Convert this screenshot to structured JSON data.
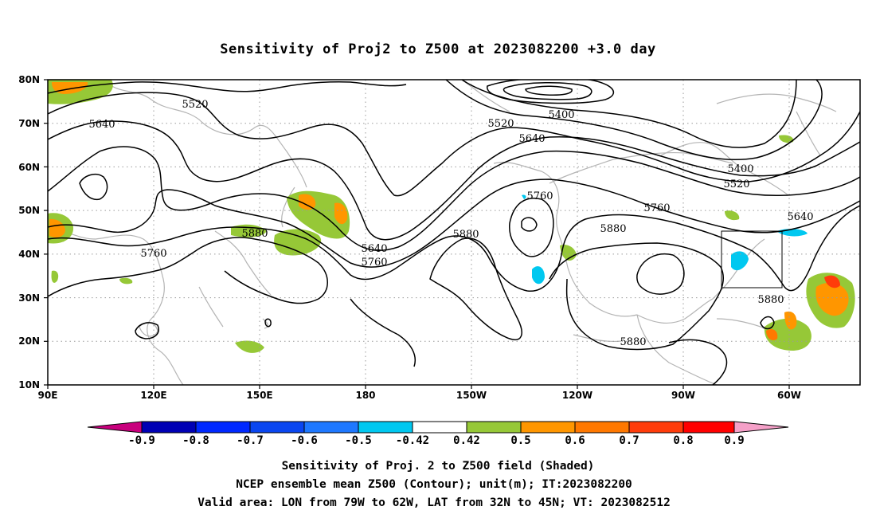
{
  "title": "Sensitivity of Proj2 to Z500 at 2023082200 +3.0 day",
  "lat_ticks": [
    "80N",
    "70N",
    "60N",
    "50N",
    "40N",
    "30N",
    "20N",
    "10N"
  ],
  "lon_ticks": [
    "90E",
    "120E",
    "150E",
    "180",
    "150W",
    "120W",
    "90W",
    "60W"
  ],
  "contour_labels": [
    "5520",
    "5640",
    "5400",
    "5520",
    "5640",
    "5400",
    "5520",
    "5760",
    "5760",
    "5880",
    "5640",
    "5760",
    "5880",
    "5640",
    "5880",
    "5760",
    "5880",
    "5880"
  ],
  "colorbar": {
    "labels": [
      "-0.9",
      "-0.8",
      "-0.7",
      "-0.6",
      "-0.5",
      "-0.42",
      "0.42",
      "0.5",
      "0.6",
      "0.7",
      "0.8",
      "0.9"
    ],
    "colors": [
      "#0000b4",
      "#0028ff",
      "#0a46f0",
      "#1e78ff",
      "#00c8f0",
      "#ffffff",
      "#96c837",
      "#ff9600",
      "#ff7800",
      "#ff3c0a",
      "#ff0000"
    ],
    "low_color": "#c8007d",
    "high_color": "#f5a0c8"
  },
  "caption": [
    "Sensitivity of Proj. 2 to Z500 field (Shaded)",
    "NCEP ensemble mean Z500 (Contour); unit(m); IT:2023082200",
    "Valid area: LON from 79W to 62W, LAT from 32N to 45N; VT: 2023082512"
  ]
}
